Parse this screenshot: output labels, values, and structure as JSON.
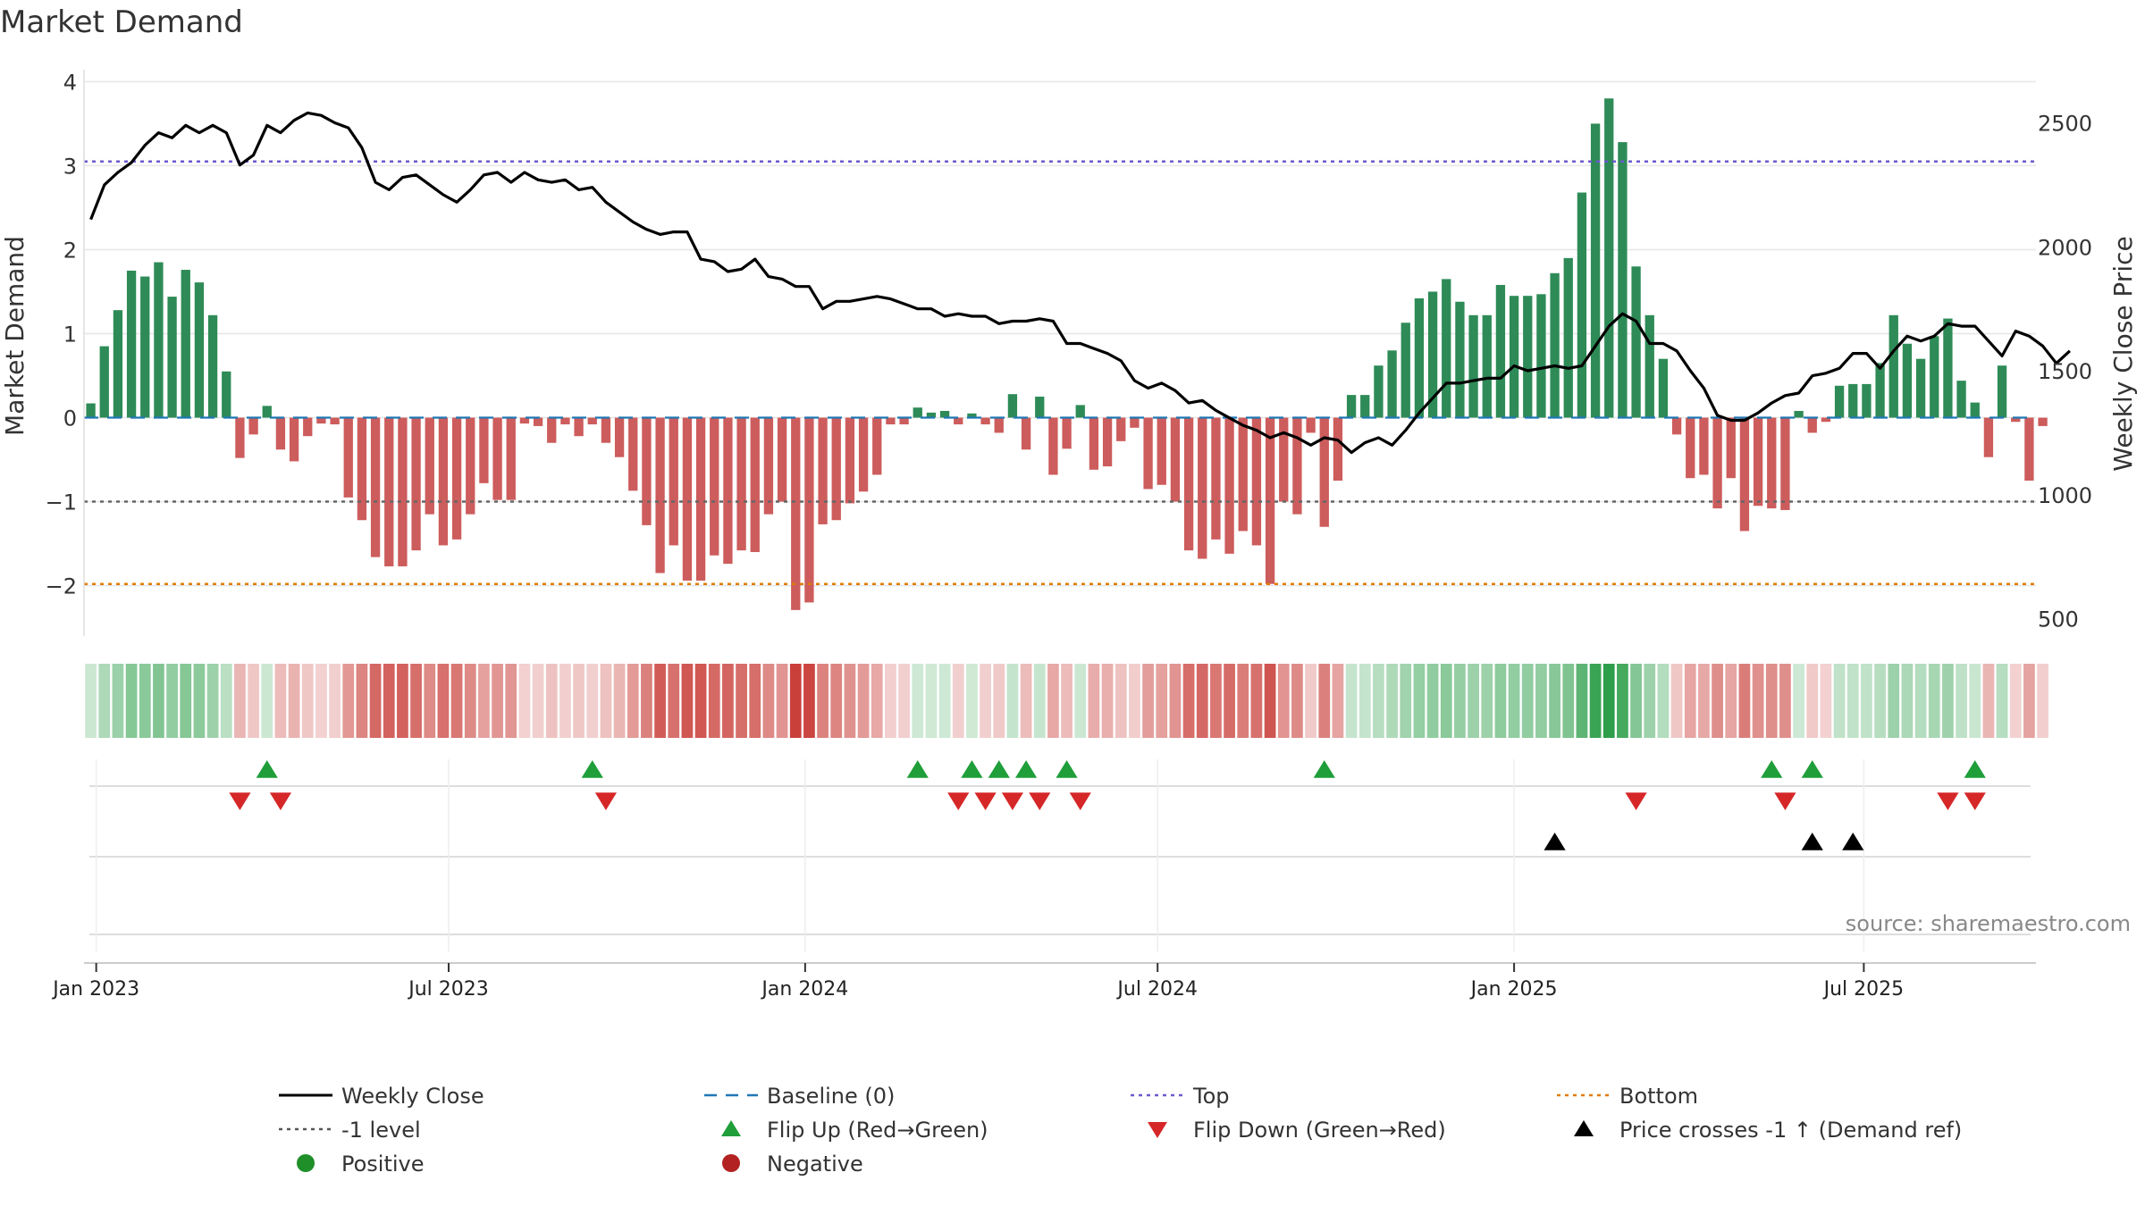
{
  "chart_data": {
    "type": "bar",
    "title": "Market Demand",
    "ylabel_left": "Market Demand",
    "ylabel_right": "Weekly Close Price",
    "source_note": "source: sharemaestro.com",
    "ylim_left": [
      -2.6,
      4.1
    ],
    "ylim_right": [
      430,
      2700
    ],
    "y_ticks_left": [
      {
        "value": 4,
        "label": "4"
      },
      {
        "value": 3,
        "label": "3"
      },
      {
        "value": 2,
        "label": "2"
      },
      {
        "value": 1,
        "label": "1"
      },
      {
        "value": 0,
        "label": "0"
      },
      {
        "value": -1,
        "label": "−1"
      },
      {
        "value": -2,
        "label": "−2"
      }
    ],
    "y_ticks_right": [
      {
        "value": 2500,
        "label": "2500"
      },
      {
        "value": 2000,
        "label": "2000"
      },
      {
        "value": 1500,
        "label": "1500"
      },
      {
        "value": 1000,
        "label": "1000"
      },
      {
        "value": 500,
        "label": "500"
      }
    ],
    "x_ticks": [
      {
        "week": 0,
        "label": "Jan 2023"
      },
      {
        "week": 26,
        "label": "Jul 2023"
      },
      {
        "week": 52.3,
        "label": "Jan 2024"
      },
      {
        "week": 78.3,
        "label": "Jul 2024"
      },
      {
        "week": 104.6,
        "label": "Jan 2025"
      },
      {
        "week": 130.4,
        "label": "Jul 2025"
      }
    ],
    "x_start_label": "2022-12-19",
    "weeks": 144,
    "reference_lines": [
      {
        "name": "Top",
        "value": 3.05,
        "color": "#6a5acd",
        "dash": "dots"
      },
      {
        "name": "-1 level",
        "value": -1,
        "color": "#666666",
        "dash": "dots"
      },
      {
        "name": "Bottom",
        "value": -1.98,
        "color": "#e07b00",
        "dash": "dots"
      },
      {
        "name": "Baseline (0)",
        "value": 0,
        "color": "#1f77b4",
        "dash": "dash"
      }
    ],
    "demand": [
      0.17,
      0.85,
      1.28,
      1.75,
      1.68,
      1.85,
      1.44,
      1.76,
      1.61,
      1.22,
      0.55,
      -0.48,
      -0.2,
      0.14,
      -0.38,
      -0.52,
      -0.22,
      -0.07,
      -0.08,
      -0.95,
      -1.22,
      -1.66,
      -1.77,
      -1.77,
      -1.58,
      -1.15,
      -1.52,
      -1.45,
      -1.15,
      -0.78,
      -0.98,
      -0.98,
      -0.07,
      -0.1,
      -0.3,
      -0.08,
      -0.22,
      -0.08,
      -0.3,
      -0.47,
      -0.87,
      -1.28,
      -1.85,
      -1.52,
      -1.94,
      -1.94,
      -1.64,
      -1.74,
      -1.58,
      -1.6,
      -1.15,
      -1.0,
      -2.29,
      -2.2,
      -1.27,
      -1.22,
      -1.02,
      -0.88,
      -0.68,
      -0.08,
      -0.08,
      0.12,
      0.06,
      0.08,
      -0.08,
      0.05,
      -0.08,
      -0.18,
      0.28,
      -0.38,
      0.25,
      -0.68,
      -0.37,
      0.15,
      -0.62,
      -0.58,
      -0.28,
      -0.12,
      -0.85,
      -0.8,
      -1.0,
      -1.58,
      -1.68,
      -1.45,
      -1.62,
      -1.35,
      -1.52,
      -1.98,
      -1.0,
      -1.15,
      -0.18,
      -1.3,
      -0.75,
      0.27,
      0.27,
      0.62,
      0.8,
      1.13,
      1.42,
      1.5,
      1.65,
      1.38,
      1.22,
      1.22,
      1.58,
      1.45,
      1.45,
      1.47,
      1.72,
      1.9,
      2.68,
      3.5,
      3.8,
      3.28,
      1.8,
      1.22,
      0.7,
      -0.2,
      -0.72,
      -0.68,
      -1.08,
      -0.72,
      -1.35,
      -1.05,
      -1.08,
      -1.1,
      0.08,
      -0.18,
      -0.05,
      0.38,
      0.4,
      0.4,
      0.65,
      1.22,
      0.88,
      0.7,
      0.97,
      1.18,
      0.44,
      0.18,
      -0.47,
      0.62,
      -0.05,
      -0.75,
      -0.1
    ],
    "close": [
      2110,
      2250,
      2300,
      2340,
      2410,
      2460,
      2440,
      2490,
      2460,
      2490,
      2460,
      2330,
      2370,
      2490,
      2460,
      2510,
      2540,
      2530,
      2500,
      2480,
      2400,
      2260,
      2230,
      2280,
      2290,
      2250,
      2210,
      2180,
      2230,
      2290,
      2300,
      2260,
      2300,
      2270,
      2260,
      2270,
      2230,
      2240,
      2180,
      2140,
      2100,
      2070,
      2050,
      2060,
      2060,
      1950,
      1940,
      1900,
      1910,
      1950,
      1880,
      1870,
      1840,
      1840,
      1750,
      1780,
      1780,
      1790,
      1800,
      1790,
      1770,
      1750,
      1750,
      1720,
      1730,
      1720,
      1720,
      1690,
      1700,
      1700,
      1710,
      1700,
      1610,
      1610,
      1590,
      1570,
      1540,
      1460,
      1430,
      1450,
      1420,
      1370,
      1380,
      1340,
      1310,
      1280,
      1260,
      1230,
      1250,
      1230,
      1200,
      1230,
      1220,
      1170,
      1210,
      1230,
      1200,
      1260,
      1330,
      1390,
      1450,
      1450,
      1460,
      1470,
      1470,
      1520,
      1500,
      1510,
      1520,
      1510,
      1520,
      1600,
      1680,
      1730,
      1700,
      1610,
      1610,
      1580,
      1500,
      1430,
      1320,
      1300,
      1300,
      1330,
      1370,
      1400,
      1410,
      1480,
      1490,
      1510,
      1570,
      1570,
      1510,
      1580,
      1640,
      1620,
      1640,
      1690,
      1680,
      1680,
      1620,
      1560,
      1660,
      1640,
      1600,
      1530,
      1580
    ],
    "flip_up": [
      13,
      37,
      61,
      65,
      67,
      69,
      72,
      91,
      124,
      127,
      139
    ],
    "flip_down": [
      11,
      14,
      38,
      64,
      66,
      68,
      70,
      73,
      114,
      125,
      137,
      139
    ],
    "price_crosses": [
      108,
      127,
      130
    ],
    "legend": [
      {
        "label": "Weekly Close",
        "symbol": "line",
        "color": "#000000"
      },
      {
        "label": "Baseline (0)",
        "symbol": "dash",
        "color": "#1f77b4"
      },
      {
        "label": "Top",
        "symbol": "dots",
        "color": "#6a5acd"
      },
      {
        "label": "Bottom",
        "symbol": "dots",
        "color": "#e07b00"
      },
      {
        "label": "-1 level",
        "symbol": "dots",
        "color": "#555555"
      },
      {
        "label": "Flip Up (Red→Green)",
        "symbol": "tri-up",
        "color": "#1f9e3a"
      },
      {
        "label": "Flip Down (Green→Red)",
        "symbol": "tri-down",
        "color": "#d62728"
      },
      {
        "label": "Price crosses -1 ↑ (Demand ref)",
        "symbol": "tri-up",
        "color": "#000000"
      },
      {
        "label": "Positive",
        "symbol": "circle",
        "color": "#1f8f2a"
      },
      {
        "label": "Negative",
        "symbol": "circle",
        "color": "#b22222"
      }
    ],
    "colors": {
      "positive_bar": "#2e8b57",
      "negative_bar": "#cd5c5c",
      "heat_positive": "#2e9e4a",
      "heat_negative": "#c9403a",
      "price_line": "#000000",
      "grid": "#e6e6e6"
    }
  }
}
